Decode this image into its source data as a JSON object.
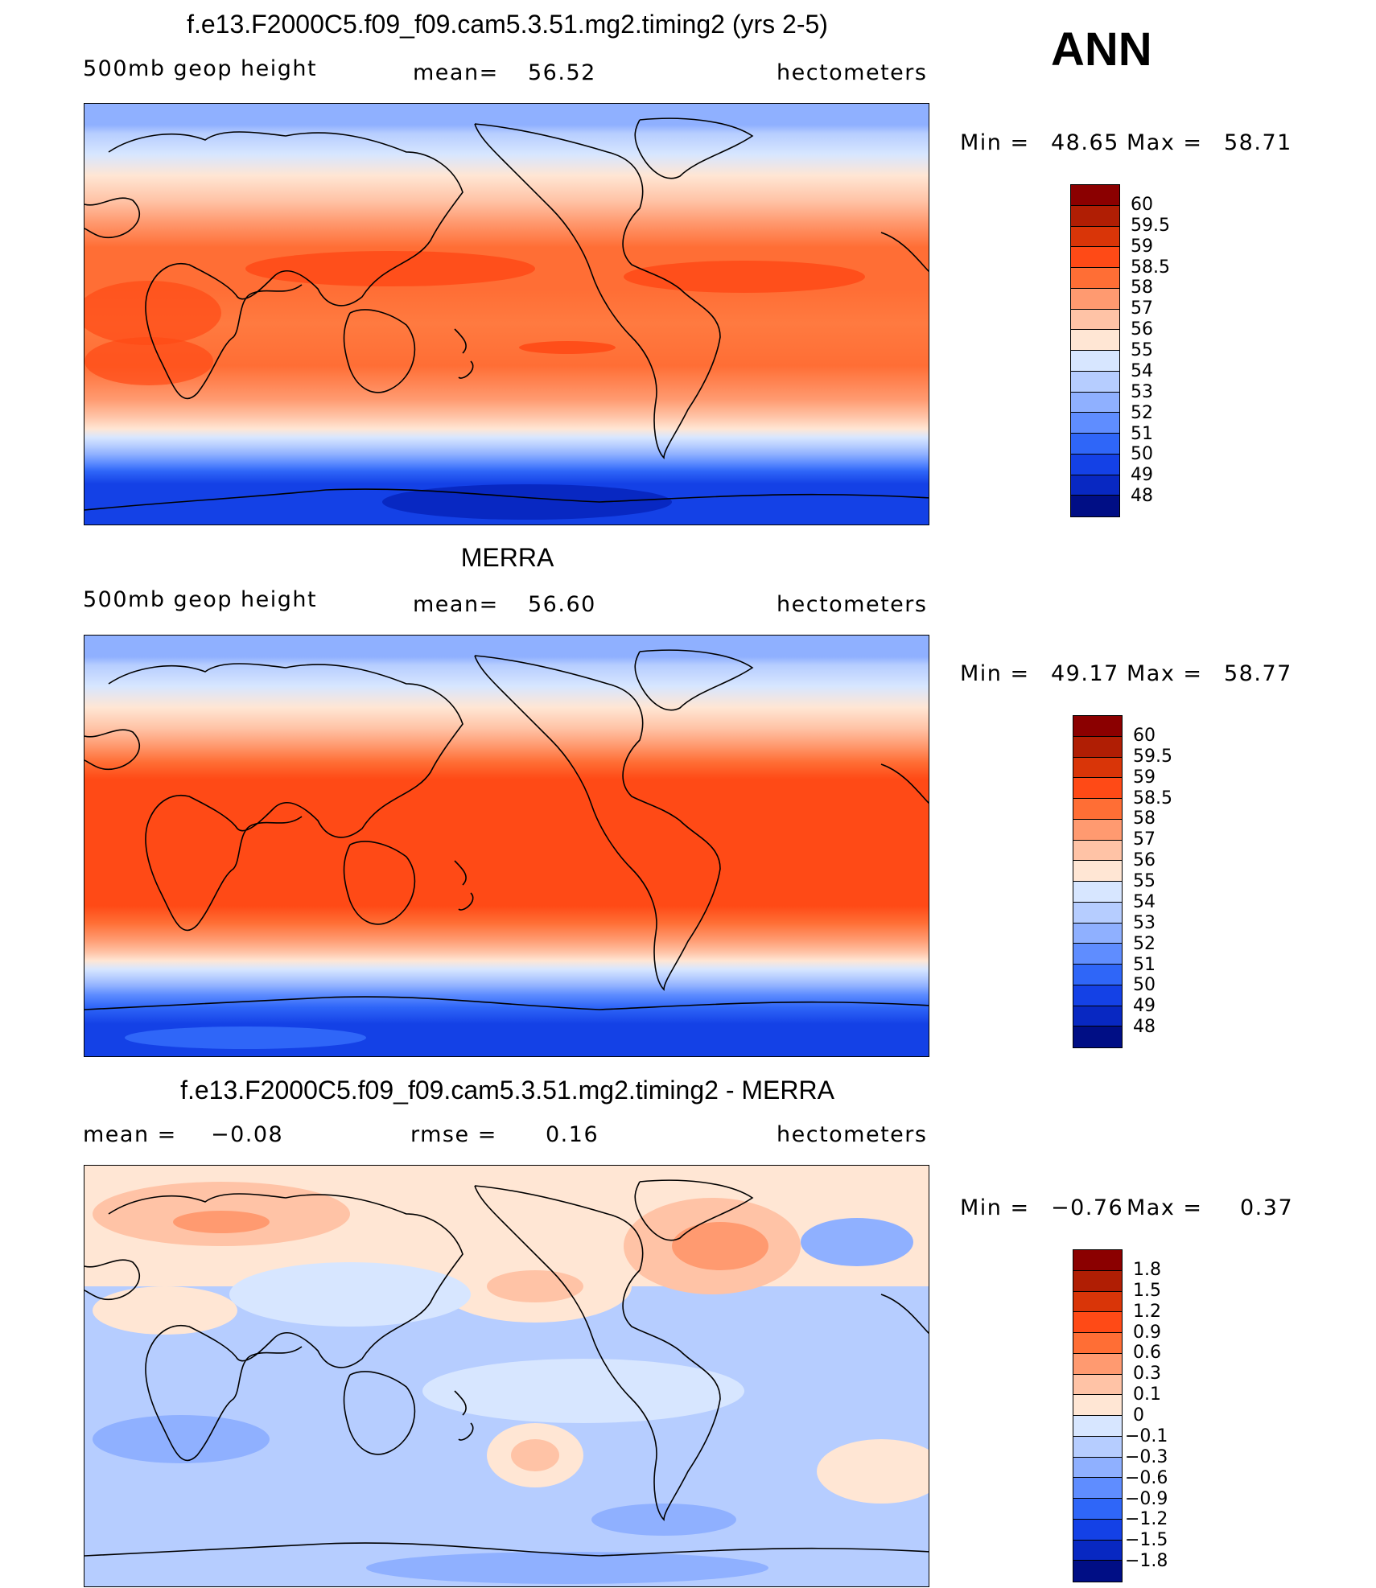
{
  "header": {
    "season": "ANN"
  },
  "panels": [
    {
      "id": "model",
      "title": "f.e13.F2000C5.f09_f09.cam5.3.51.mg2.timing2 (yrs 2-5)",
      "left_label": "500mb  geop  height",
      "mean_label": "mean=",
      "mean_value": "56.52",
      "units": "hectometers",
      "min_label": "Min =",
      "min_value": "48.65",
      "max_label": "Max =",
      "max_value": "58.71",
      "map_description": "500mb geopotential height field, warm tropics, cool poles"
    },
    {
      "id": "obs",
      "title": "MERRA",
      "left_label": "500mb  geop  height",
      "mean_label": "mean=",
      "mean_value": "56.60",
      "units": "hectometers",
      "min_label": "Min =",
      "min_value": "49.17",
      "max_label": "Max =",
      "max_value": "58.77",
      "map_description": "500mb geopotential height field from reanalysis"
    },
    {
      "id": "diff",
      "title": "f.e13.F2000C5.f09_f09.cam5.3.51.mg2.timing2 - MERRA",
      "left_label": "mean  =",
      "mean_label": "",
      "mean_value": "−0.08",
      "rmse_label": "rmse  =",
      "rmse_value": "0.16",
      "units": "hectometers",
      "min_label": "Min =",
      "min_value": "−0.76",
      "max_label": "Max =",
      "max_value": "0.37",
      "map_description": "Model minus reanalysis difference"
    }
  ],
  "colorbars": {
    "height": {
      "colors": [
        "#8b0000",
        "#b01e04",
        "#d93508",
        "#ff4a16",
        "#ff6e35",
        "#ff9a70",
        "#ffc3a6",
        "#ffe6d4",
        "#d7e6ff",
        "#b6cdff",
        "#8fb0ff",
        "#5f8dff",
        "#2f66f8",
        "#1441e6",
        "#0828c2",
        "#000e85"
      ],
      "labels": [
        "60",
        "59.5",
        "59",
        "58.5",
        "58",
        "57",
        "56",
        "55",
        "54",
        "53",
        "52",
        "51",
        "50",
        "49",
        "48"
      ]
    },
    "diff": {
      "colors": [
        "#8b0000",
        "#b01e04",
        "#d93508",
        "#ff4a16",
        "#ff6e35",
        "#ff9a70",
        "#ffc3a6",
        "#ffe6d4",
        "#d7e6ff",
        "#b6cdff",
        "#8fb0ff",
        "#5f8dff",
        "#2f66f8",
        "#1441e6",
        "#0828c2",
        "#000e85"
      ],
      "labels": [
        "1.8",
        "1.5",
        "1.2",
        "0.9",
        "0.6",
        "0.3",
        "0.1",
        "0",
        "−0.1",
        "−0.3",
        "−0.6",
        "−0.9",
        "−1.2",
        "−1.5",
        "−1.8"
      ]
    }
  }
}
